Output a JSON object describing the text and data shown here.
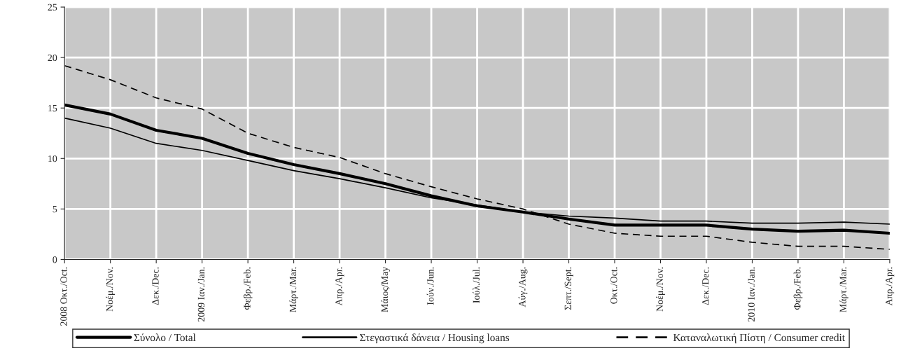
{
  "chart_data": {
    "type": "line",
    "categories": [
      "2008 Οκτ./Oct.",
      "Νοέμ./Nov.",
      "Δεκ./Dec.",
      "2009 Ιαν./Jan.",
      "Φεβρ./Feb.",
      "Μάρτ./Mar.",
      "Απρ./Apr.",
      "Μάιος/May",
      "Ιούν./Jun.",
      "Ιούλ./Jul.",
      "Αύγ./Aug.",
      "Σεπτ./Sept.",
      "Οκτ./Oct.",
      "Νοέμ./Nov.",
      "Δεκ./Dec.",
      "2010 Ιαν./Jan.",
      "Φεβρ./Feb.",
      "Μάρτ./Mar.",
      "Απρ./Apr."
    ],
    "series": [
      {
        "name": "Σύνολο / Total",
        "color": "#000000",
        "line_style": "solid",
        "values": [
          15.3,
          14.4,
          12.8,
          12.0,
          10.5,
          9.4,
          8.5,
          7.5,
          6.3,
          5.3,
          4.7,
          4.0,
          3.4,
          3.4,
          3.4,
          3.0,
          2.8,
          2.9,
          2.6
        ]
      },
      {
        "name": "Στεγαστικά δάνεια / Housing loans",
        "color": "#000000",
        "line_style": "solid",
        "values": [
          14.0,
          13.0,
          11.5,
          10.8,
          9.8,
          8.8,
          8.0,
          7.1,
          6.1,
          5.4,
          4.7,
          4.3,
          4.1,
          3.8,
          3.8,
          3.6,
          3.6,
          3.7,
          3.5
        ]
      },
      {
        "name": "Καταναλωτική Πίστη / Consumer credit",
        "color": "#000000",
        "line_style": "dashed",
        "values": [
          19.2,
          17.8,
          16.0,
          14.9,
          12.5,
          11.1,
          10.1,
          8.5,
          7.2,
          6.0,
          5.0,
          3.5,
          2.6,
          2.3,
          2.3,
          1.7,
          1.3,
          1.3,
          1.0
        ]
      }
    ],
    "ylim": [
      0,
      25
    ],
    "yticks": [
      0,
      5,
      10,
      15,
      20,
      25
    ],
    "grid": true,
    "legend": "bottom"
  }
}
